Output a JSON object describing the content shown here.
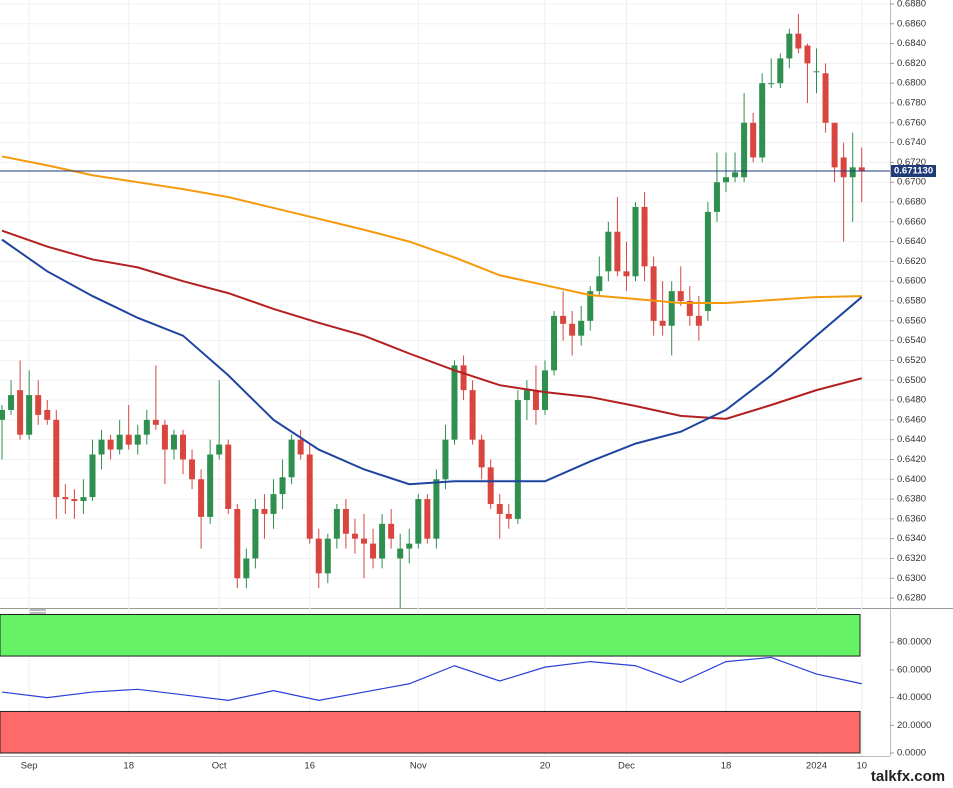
{
  "chart_data": [
    {
      "type": "candlestick",
      "categories": [
        null,
        null,
        null,
        "Sep",
        null,
        null,
        null,
        null,
        null,
        null,
        null,
        null,
        null,
        null,
        "18",
        null,
        null,
        null,
        null,
        null,
        null,
        null,
        null,
        null,
        "Oct",
        null,
        null,
        null,
        null,
        null,
        null,
        null,
        null,
        null,
        "16",
        null,
        null,
        null,
        null,
        null,
        null,
        null,
        null,
        null,
        null,
        null,
        "Nov",
        null,
        null,
        null,
        null,
        null,
        null,
        null,
        null,
        null,
        null,
        null,
        null,
        null,
        "20",
        null,
        null,
        null,
        null,
        null,
        null,
        null,
        null,
        "Dec",
        null,
        null,
        null,
        null,
        null,
        null,
        null,
        null,
        null,
        null,
        "18",
        null,
        null,
        null,
        null,
        null,
        null,
        null,
        null,
        null,
        "2024",
        null,
        null,
        null,
        null,
        "10"
      ],
      "open": [
        0.646,
        0.647,
        0.649,
        0.6445,
        0.6485,
        0.647,
        0.646,
        0.6382,
        0.638,
        0.6378,
        0.6382,
        0.6425,
        0.644,
        0.643,
        0.6445,
        0.6435,
        0.6445,
        0.646,
        0.6455,
        0.643,
        0.6445,
        0.642,
        0.64,
        0.6362,
        0.6425,
        0.6435,
        0.637,
        0.63,
        0.632,
        0.637,
        0.6365,
        0.6385,
        0.6402,
        0.644,
        0.6425,
        0.634,
        0.6305,
        0.634,
        0.637,
        0.6345,
        0.634,
        0.6335,
        0.632,
        0.6355,
        0.632,
        0.633,
        0.6335,
        0.638,
        0.634,
        0.64,
        0.644,
        0.6515,
        0.649,
        0.644,
        0.6412,
        0.6375,
        0.6365,
        0.636,
        0.648,
        0.649,
        0.647,
        0.651,
        0.6565,
        0.6557,
        0.6545,
        0.656,
        0.659,
        0.661,
        0.665,
        0.661,
        0.6605,
        0.6675,
        0.6615,
        0.656,
        0.6555,
        0.659,
        0.658,
        0.6565,
        0.657,
        0.667,
        0.67,
        0.6705,
        0.6705,
        0.676,
        0.6725,
        0.68,
        0.68,
        0.6825,
        0.685,
        0.6838,
        0.6812,
        0.681,
        0.676,
        0.6725,
        0.6705,
        0.6715
      ],
      "high": [
        0.6475,
        0.65,
        0.652,
        0.651,
        0.65,
        0.648,
        0.647,
        0.6395,
        0.639,
        0.64,
        0.644,
        0.645,
        0.6445,
        0.646,
        0.6475,
        0.6455,
        0.647,
        0.6515,
        0.646,
        0.645,
        0.645,
        0.643,
        0.641,
        0.644,
        0.65,
        0.644,
        0.6375,
        0.633,
        0.638,
        0.6385,
        0.64,
        0.642,
        0.6445,
        0.645,
        0.6435,
        0.635,
        0.6345,
        0.6375,
        0.638,
        0.636,
        0.6365,
        0.635,
        0.6365,
        0.637,
        0.6345,
        0.635,
        0.6385,
        0.6385,
        0.641,
        0.6455,
        0.652,
        0.6525,
        0.65,
        0.6445,
        0.642,
        0.6385,
        0.6375,
        0.649,
        0.65,
        0.6515,
        0.652,
        0.657,
        0.659,
        0.657,
        0.6575,
        0.6595,
        0.6625,
        0.666,
        0.6685,
        0.664,
        0.668,
        0.669,
        0.6625,
        0.66,
        0.66,
        0.6615,
        0.6595,
        0.6585,
        0.668,
        0.673,
        0.673,
        0.673,
        0.679,
        0.677,
        0.681,
        0.6825,
        0.683,
        0.6855,
        0.687,
        0.684,
        0.6835,
        0.682,
        0.676,
        0.674,
        0.675,
        0.6735
      ],
      "low": [
        0.642,
        0.6465,
        0.644,
        0.644,
        0.6455,
        0.6455,
        0.636,
        0.6365,
        0.636,
        0.6365,
        0.6378,
        0.641,
        0.642,
        0.6425,
        0.643,
        0.6425,
        0.6435,
        0.645,
        0.6395,
        0.642,
        0.6405,
        0.639,
        0.633,
        0.6355,
        0.642,
        0.6365,
        0.629,
        0.629,
        0.631,
        0.634,
        0.635,
        0.637,
        0.6395,
        0.642,
        0.6335,
        0.629,
        0.6295,
        0.633,
        0.633,
        0.6325,
        0.63,
        0.631,
        0.631,
        0.633,
        0.627,
        0.6315,
        0.633,
        0.6335,
        0.633,
        0.639,
        0.6435,
        0.648,
        0.6435,
        0.64,
        0.637,
        0.634,
        0.635,
        0.6355,
        0.646,
        0.6455,
        0.6465,
        0.6505,
        0.654,
        0.6525,
        0.6535,
        0.655,
        0.6585,
        0.66,
        0.6605,
        0.659,
        0.66,
        0.66,
        0.6545,
        0.6545,
        0.6525,
        0.6575,
        0.6555,
        0.654,
        0.656,
        0.666,
        0.669,
        0.67,
        0.67,
        0.672,
        0.672,
        0.6795,
        0.6795,
        0.6815,
        0.683,
        0.678,
        0.679,
        0.675,
        0.67,
        0.664,
        0.666,
        0.668
      ],
      "close": [
        0.647,
        0.6485,
        0.6445,
        0.6485,
        0.6465,
        0.646,
        0.6382,
        0.638,
        0.6378,
        0.6382,
        0.6425,
        0.644,
        0.643,
        0.6445,
        0.6435,
        0.6445,
        0.646,
        0.6455,
        0.643,
        0.6445,
        0.642,
        0.64,
        0.6362,
        0.6425,
        0.6435,
        0.637,
        0.63,
        0.632,
        0.637,
        0.6365,
        0.6385,
        0.6402,
        0.644,
        0.6425,
        0.634,
        0.6305,
        0.634,
        0.637,
        0.6345,
        0.634,
        0.6335,
        0.632,
        0.6355,
        0.634,
        0.633,
        0.6335,
        0.638,
        0.634,
        0.64,
        0.644,
        0.6515,
        0.649,
        0.644,
        0.6412,
        0.6375,
        0.6365,
        0.636,
        0.648,
        0.649,
        0.647,
        0.651,
        0.6565,
        0.6557,
        0.6545,
        0.656,
        0.659,
        0.6605,
        0.665,
        0.661,
        0.6605,
        0.6675,
        0.6615,
        0.656,
        0.6555,
        0.659,
        0.658,
        0.6565,
        0.6555,
        0.667,
        0.67,
        0.6705,
        0.671,
        0.676,
        0.6725,
        0.68,
        0.68,
        0.6825,
        0.685,
        0.6835,
        0.682,
        0.6812,
        0.676,
        0.6715,
        0.6705,
        0.6715,
        0.6711
      ],
      "up_color": "#2f8f4f",
      "down_color": "#d9463f",
      "overlays": [
        {
          "color": "#f59a0c",
          "x": [
            0,
            5,
            10,
            15,
            20,
            25,
            30,
            35,
            40,
            45,
            50,
            55,
            60,
            65,
            70,
            75,
            80,
            85,
            90,
            95
          ],
          "values": [
            0.6726,
            0.6717,
            0.6707,
            0.67,
            0.6693,
            0.6685,
            0.6674,
            0.6663,
            0.6652,
            0.664,
            0.6624,
            0.6606,
            0.6596,
            0.6586,
            0.6582,
            0.6578,
            0.6578,
            0.6581,
            0.6584,
            0.6585
          ]
        },
        {
          "color": "#b3201f",
          "x": [
            0,
            5,
            10,
            15,
            20,
            25,
            30,
            35,
            40,
            45,
            50,
            55,
            60,
            65,
            70,
            75,
            80,
            85,
            90,
            95
          ],
          "values": [
            0.6651,
            0.6635,
            0.6622,
            0.6614,
            0.66,
            0.6588,
            0.6572,
            0.6558,
            0.6545,
            0.6527,
            0.651,
            0.6495,
            0.6488,
            0.6483,
            0.6474,
            0.6464,
            0.6461,
            0.6475,
            0.649,
            0.6502
          ]
        },
        {
          "color": "#1f44a0",
          "x": [
            0,
            5,
            10,
            15,
            20,
            25,
            30,
            35,
            40,
            45,
            50,
            55,
            60,
            65,
            70,
            75,
            80,
            85,
            90,
            95
          ],
          "values": [
            0.6642,
            0.661,
            0.6585,
            0.6563,
            0.6545,
            0.6505,
            0.646,
            0.643,
            0.641,
            0.6395,
            0.6398,
            0.6398,
            0.6398,
            0.6418,
            0.6436,
            0.6448,
            0.647,
            0.6505,
            0.6545,
            0.6584
          ]
        }
      ],
      "last_price": {
        "value": 0.67113,
        "label": "0.671130"
      },
      "ylim": [
        0.6271,
        0.6884
      ],
      "yticks": [
        {
          "value": 0.628,
          "label": "0.6280"
        },
        {
          "value": 0.63,
          "label": "0.6300"
        },
        {
          "value": 0.632,
          "label": "0.6320"
        },
        {
          "value": 0.634,
          "label": "0.6340"
        },
        {
          "value": 0.636,
          "label": "0.6360"
        },
        {
          "value": 0.638,
          "label": "0.6380"
        },
        {
          "value": 0.64,
          "label": "0.6400"
        },
        {
          "value": 0.642,
          "label": "0.6420"
        },
        {
          "value": 0.644,
          "label": "0.6440"
        },
        {
          "value": 0.646,
          "label": "0.6460"
        },
        {
          "value": 0.648,
          "label": "0.6480"
        },
        {
          "value": 0.65,
          "label": "0.6500"
        },
        {
          "value": 0.652,
          "label": "0.6520"
        },
        {
          "value": 0.654,
          "label": "0.6540"
        },
        {
          "value": 0.656,
          "label": "0.6560"
        },
        {
          "value": 0.658,
          "label": "0.6580"
        },
        {
          "value": 0.66,
          "label": "0.6600"
        },
        {
          "value": 0.662,
          "label": "0.6620"
        },
        {
          "value": 0.664,
          "label": "0.6640"
        },
        {
          "value": 0.666,
          "label": "0.6660"
        },
        {
          "value": 0.668,
          "label": "0.6680"
        },
        {
          "value": 0.67,
          "label": "0.6700"
        },
        {
          "value": 0.672,
          "label": "0.6720"
        },
        {
          "value": 0.674,
          "label": "0.6740"
        },
        {
          "value": 0.676,
          "label": "0.6760"
        },
        {
          "value": 0.678,
          "label": "0.6780"
        },
        {
          "value": 0.68,
          "label": "0.6800"
        },
        {
          "value": 0.682,
          "label": "0.6820"
        },
        {
          "value": 0.684,
          "label": "0.6840"
        },
        {
          "value": 0.686,
          "label": "0.6860"
        },
        {
          "value": 0.688,
          "label": "0.6880"
        }
      ],
      "grid": true
    },
    {
      "type": "line",
      "color": "#2b3fd6",
      "x": [
        0,
        5,
        10,
        15,
        20,
        25,
        30,
        35,
        40,
        45,
        50,
        55,
        60,
        65,
        70,
        75,
        80,
        85,
        90,
        95
      ],
      "values": [
        44,
        40,
        44,
        46,
        42,
        38,
        45,
        38,
        44,
        50,
        63,
        52,
        62,
        66,
        63,
        51,
        66,
        69,
        57,
        50
      ],
      "bands": [
        {
          "from": 70,
          "to": 100,
          "color": "#66f266"
        },
        {
          "from": 0,
          "to": 30,
          "color": "#fd6a6a"
        }
      ],
      "ylim": [
        0,
        100
      ],
      "yticks": [
        {
          "value": 0,
          "label": "0.0000"
        },
        {
          "value": 20,
          "label": "20.0000"
        },
        {
          "value": 40,
          "label": "40.0000"
        },
        {
          "value": 60,
          "label": "60.0000"
        },
        {
          "value": 80,
          "label": "80.0000"
        }
      ]
    }
  ],
  "watermark": "talkfx.com"
}
